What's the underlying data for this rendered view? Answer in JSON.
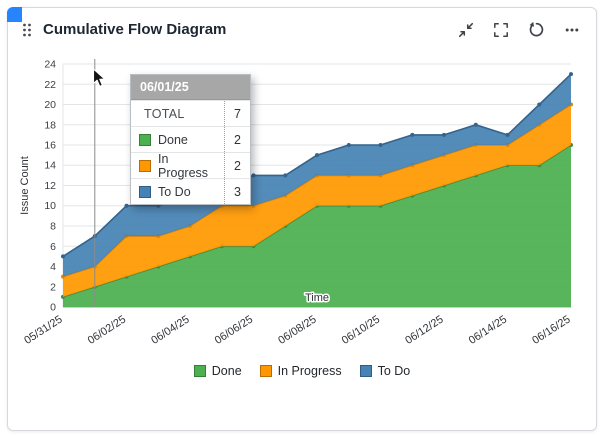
{
  "widget": {
    "title": "Cumulative Flow Diagram"
  },
  "ui": {
    "accent": "#2684FF",
    "grid_color": "#e3e5e8",
    "axis_color": "#9aa0a6",
    "tooltip_header_bg": "#a7a7a7"
  },
  "tooltip": {
    "date": "06/01/25",
    "rows": [
      {
        "label": "TOTAL",
        "value": "7"
      },
      {
        "label": "Done",
        "value": "2"
      },
      {
        "label": "In Progress",
        "value": "2"
      },
      {
        "label": "To Do",
        "value": "3"
      }
    ]
  },
  "chart_data": {
    "type": "area",
    "stacked": true,
    "title": "Cumulative Flow Diagram",
    "xlabel": "Time",
    "ylabel": "Issue Count",
    "ylim": [
      0,
      24
    ],
    "ytick_step": 2,
    "xtick_every": 2,
    "grid": true,
    "legend_position": "bottom",
    "crosshair_index": 1,
    "x": [
      "05/31/25",
      "06/01/25",
      "06/02/25",
      "06/03/25",
      "06/04/25",
      "06/05/25",
      "06/06/25",
      "06/07/25",
      "06/08/25",
      "06/09/25",
      "06/10/25",
      "06/11/25",
      "06/12/25",
      "06/13/25",
      "06/14/25",
      "06/15/25",
      "06/16/25"
    ],
    "series": [
      {
        "name": "Done",
        "color": "#4CAF50",
        "line_color": "#3d8b40",
        "values": [
          1,
          2,
          3,
          4,
          5,
          6,
          6,
          8,
          10,
          10,
          10,
          11,
          12,
          13,
          14,
          14,
          16
        ]
      },
      {
        "name": "In Progress",
        "color": "#FF9800",
        "line_color": "#e08600",
        "values": [
          2,
          2,
          4,
          3,
          3,
          4,
          4,
          3,
          3,
          3,
          3,
          3,
          3,
          3,
          2,
          4,
          4
        ]
      },
      {
        "name": "To Do",
        "color": "#4682B4",
        "line_color": "#35638c",
        "values": [
          2,
          3,
          3,
          3,
          3,
          2,
          3,
          2,
          2,
          3,
          3,
          3,
          2,
          2,
          1,
          2,
          3
        ]
      }
    ],
    "stacked_totals": [
      5,
      7,
      10,
      10,
      11,
      12,
      13,
      13,
      15,
      16,
      16,
      17,
      17,
      18,
      17,
      20,
      23
    ]
  }
}
